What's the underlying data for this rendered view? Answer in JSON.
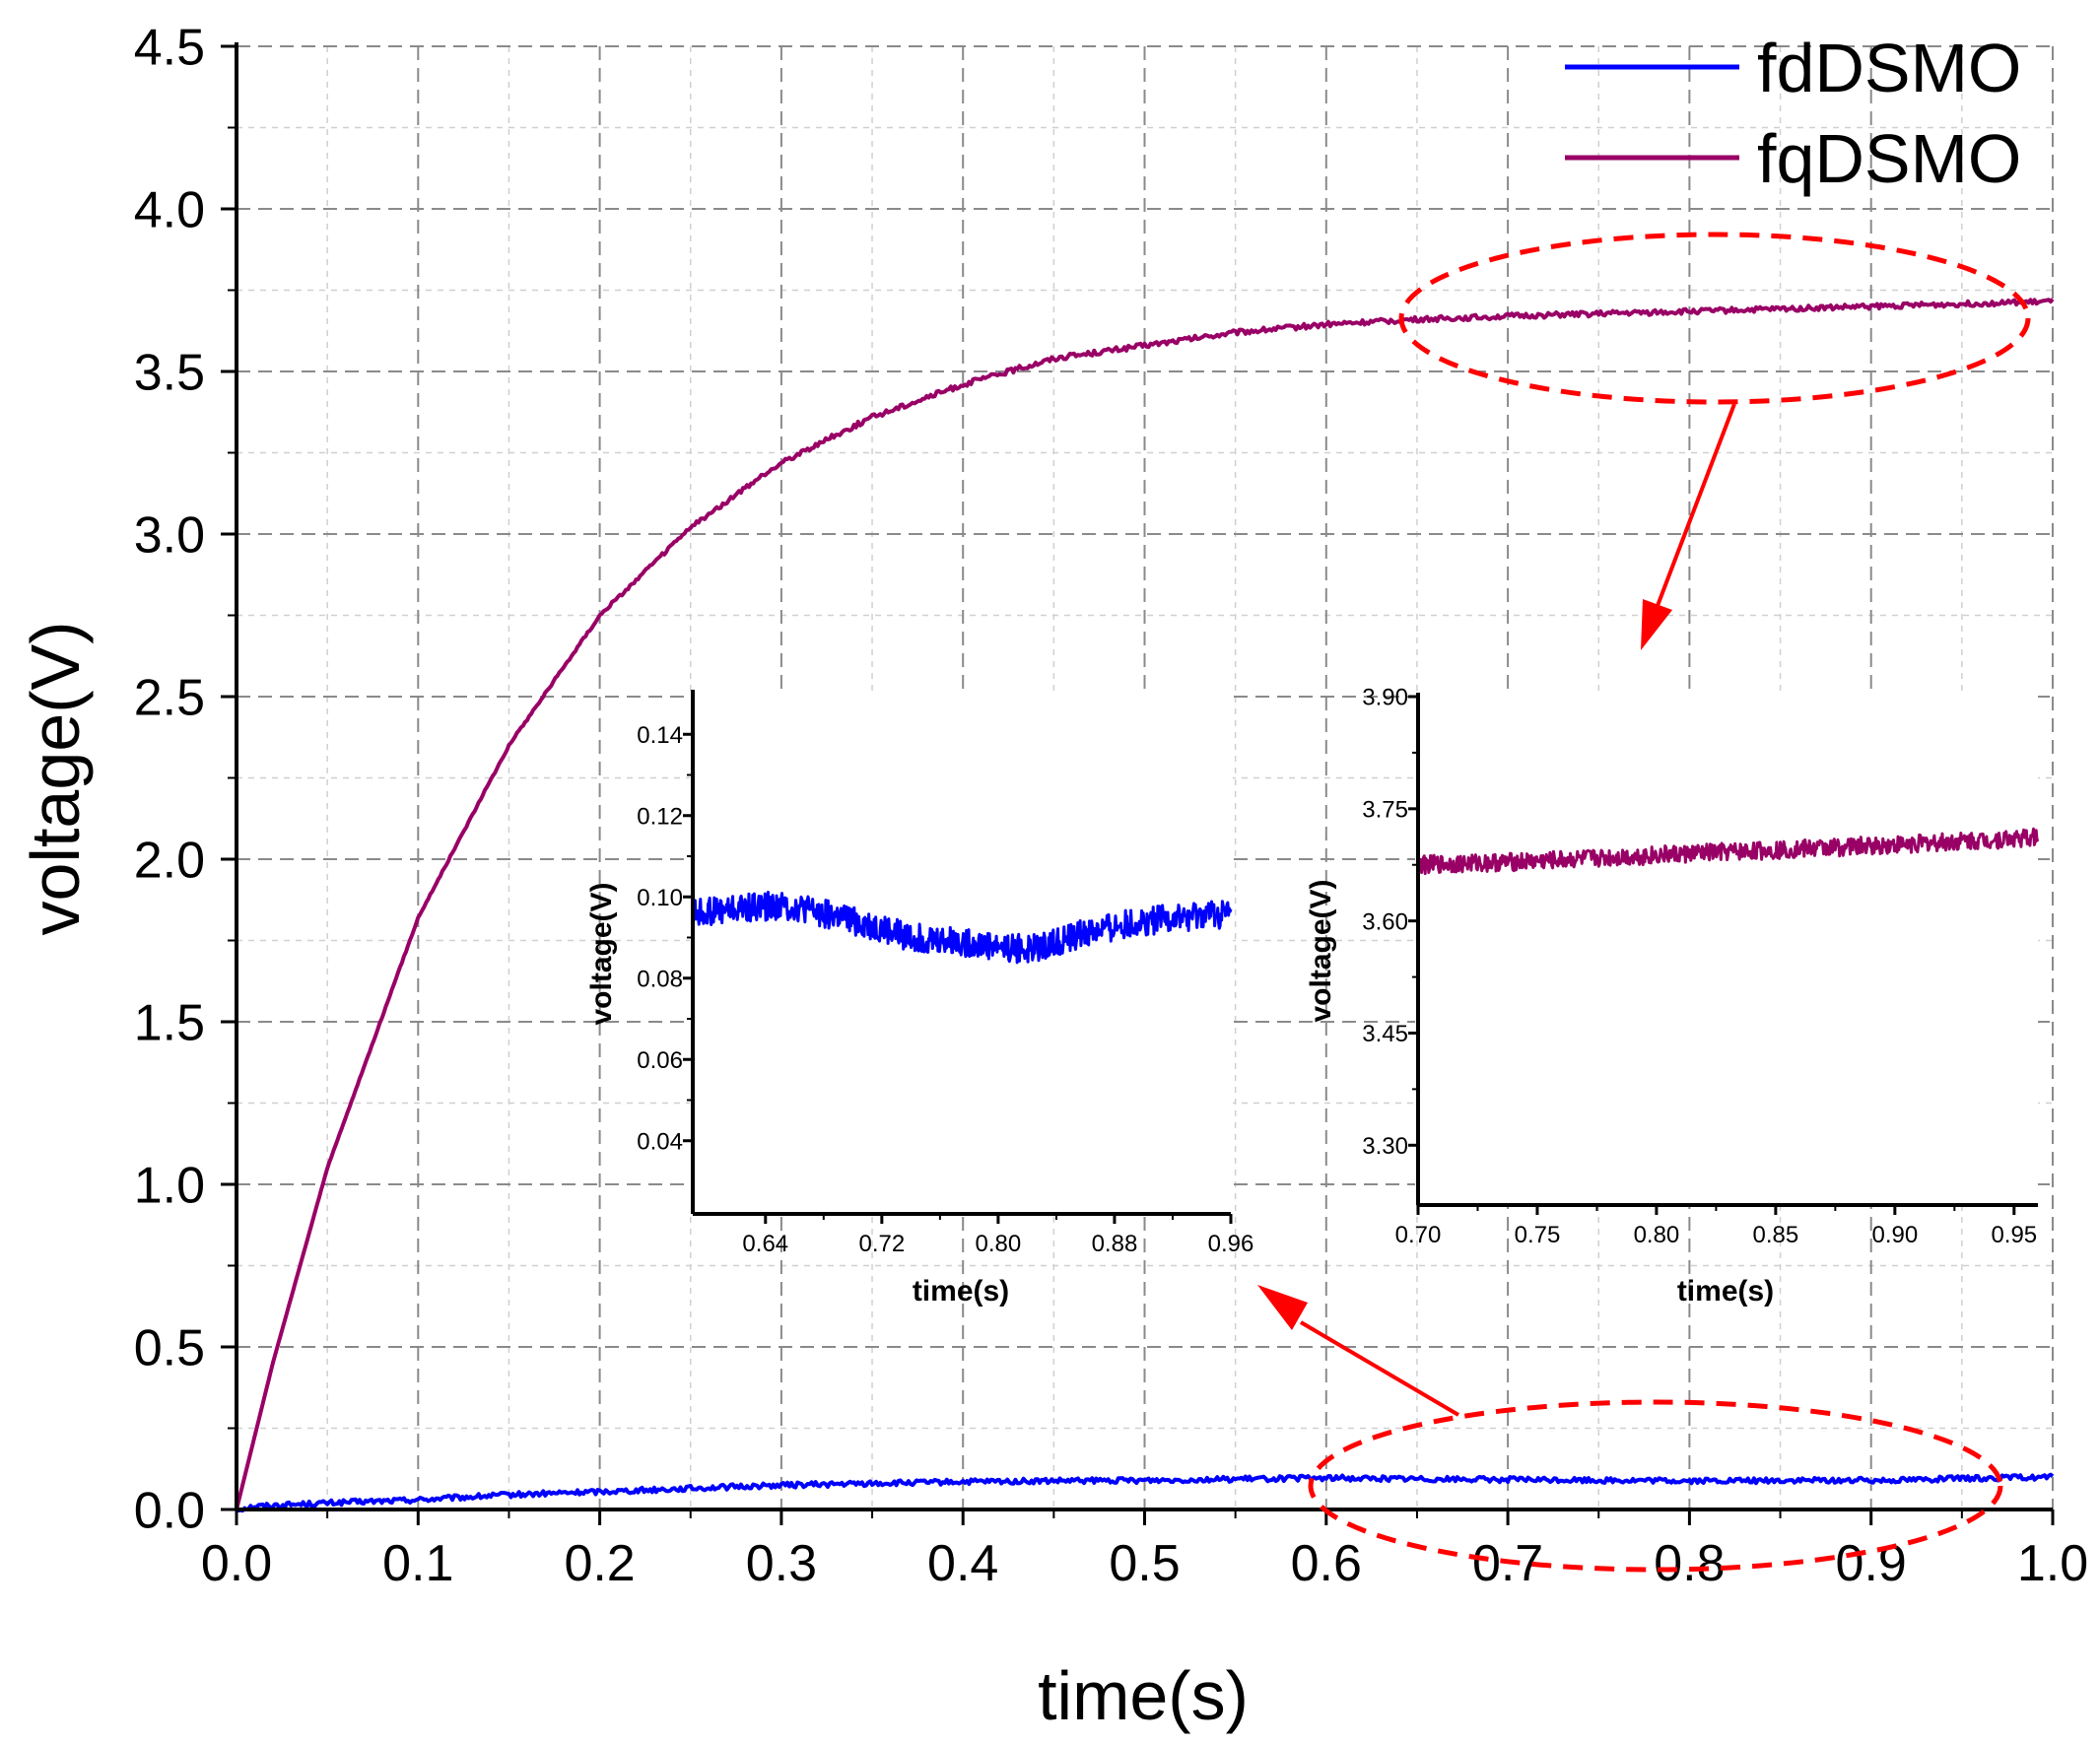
{
  "colors": {
    "fd": "#0000ff",
    "fq": "#990066",
    "highlight": "#ff0000",
    "grid_major": "#8a8a8a",
    "grid_minor": "#d0d0d0"
  },
  "chart_data": [
    {
      "id": "main",
      "type": "line",
      "title": "",
      "xlabel": "time(s)",
      "ylabel": "voltage(V)",
      "xlim": [
        0,
        1.0
      ],
      "ylim": [
        0,
        4.5
      ],
      "xticks": [
        0,
        0.1,
        0.2,
        0.3,
        0.4,
        0.5,
        0.6,
        0.7,
        0.8,
        0.9,
        1.0
      ],
      "xtick_labels": [
        "0.0",
        "0.1",
        "0.2",
        "0.3",
        "0.4",
        "0.5",
        "0.6",
        "0.7",
        "0.8",
        "0.9",
        "1.0"
      ],
      "yticks": [
        0,
        0.5,
        1.0,
        1.5,
        2.0,
        2.5,
        3.0,
        3.5,
        4.0,
        4.5
      ],
      "ytick_labels": [
        "0.0",
        "0.5",
        "1.0",
        "1.5",
        "2.0",
        "2.5",
        "3.0",
        "3.5",
        "4.0",
        "4.5"
      ],
      "grid": true,
      "legend_position": "top-right",
      "series": [
        {
          "name": "fdDSMO",
          "color_key": "fd",
          "x": [
            0,
            0.01,
            0.05,
            0.1,
            0.15,
            0.2,
            0.25,
            0.3,
            0.35,
            0.4,
            0.5,
            0.6,
            0.7,
            0.8,
            0.9,
            1.0
          ],
          "y": [
            0,
            0.01,
            0.02,
            0.03,
            0.045,
            0.055,
            0.065,
            0.075,
            0.08,
            0.085,
            0.09,
            0.097,
            0.092,
            0.088,
            0.09,
            0.1
          ]
        },
        {
          "name": "fqDSMO",
          "color_key": "fq",
          "x": [
            0,
            0.02,
            0.05,
            0.1,
            0.15,
            0.2,
            0.25,
            0.3,
            0.35,
            0.4,
            0.45,
            0.5,
            0.55,
            0.6,
            0.65,
            0.7,
            0.8,
            0.9,
            1.0
          ],
          "y": [
            0,
            0.45,
            1.05,
            1.82,
            2.35,
            2.75,
            3.02,
            3.22,
            3.36,
            3.46,
            3.54,
            3.58,
            3.62,
            3.645,
            3.66,
            3.67,
            3.685,
            3.7,
            3.715
          ]
        }
      ]
    },
    {
      "id": "inset_fd",
      "type": "line",
      "title": "",
      "xlabel": "time(s)",
      "ylabel": "voltage(V)",
      "xlim": [
        0.59,
        0.96
      ],
      "ylim": [
        0.022,
        0.15
      ],
      "xticks": [
        0.64,
        0.72,
        0.8,
        0.88,
        0.96
      ],
      "xtick_labels": [
        "0.64",
        "0.72",
        "0.80",
        "0.88",
        "0.96"
      ],
      "yticks": [
        0.04,
        0.06,
        0.08,
        0.1,
        0.12,
        0.14
      ],
      "ytick_labels": [
        "0.04",
        "0.06",
        "0.08",
        "0.10",
        "0.12",
        "0.14"
      ],
      "grid": false,
      "series": [
        {
          "name": "fdDSMO",
          "color_key": "fd",
          "x": [
            0.59,
            0.62,
            0.65,
            0.68,
            0.71,
            0.74,
            0.77,
            0.8,
            0.82,
            0.84,
            0.87,
            0.9,
            0.93,
            0.96
          ],
          "y": [
            0.096,
            0.097,
            0.098,
            0.096,
            0.093,
            0.09,
            0.089,
            0.088,
            0.087,
            0.089,
            0.092,
            0.094,
            0.095,
            0.096
          ]
        }
      ]
    },
    {
      "id": "inset_fq",
      "type": "line",
      "title": "",
      "xlabel": "time(s)",
      "ylabel": "voltage(V)",
      "xlim": [
        0.7,
        0.96
      ],
      "ylim": [
        3.22,
        3.9
      ],
      "xticks": [
        0.7,
        0.75,
        0.8,
        0.85,
        0.9,
        0.95
      ],
      "xtick_labels": [
        "0.70",
        "0.75",
        "0.80",
        "0.85",
        "0.90",
        "0.95"
      ],
      "yticks": [
        3.3,
        3.45,
        3.6,
        3.75,
        3.9
      ],
      "ytick_labels": [
        "3.30",
        "3.45",
        "3.60",
        "3.75",
        "3.90"
      ],
      "grid": false,
      "series": [
        {
          "name": "fqDSMO",
          "color_key": "fq",
          "x": [
            0.7,
            0.75,
            0.8,
            0.85,
            0.9,
            0.95,
            0.96
          ],
          "y": [
            3.675,
            3.68,
            3.688,
            3.695,
            3.702,
            3.71,
            3.712
          ]
        }
      ]
    }
  ]
}
